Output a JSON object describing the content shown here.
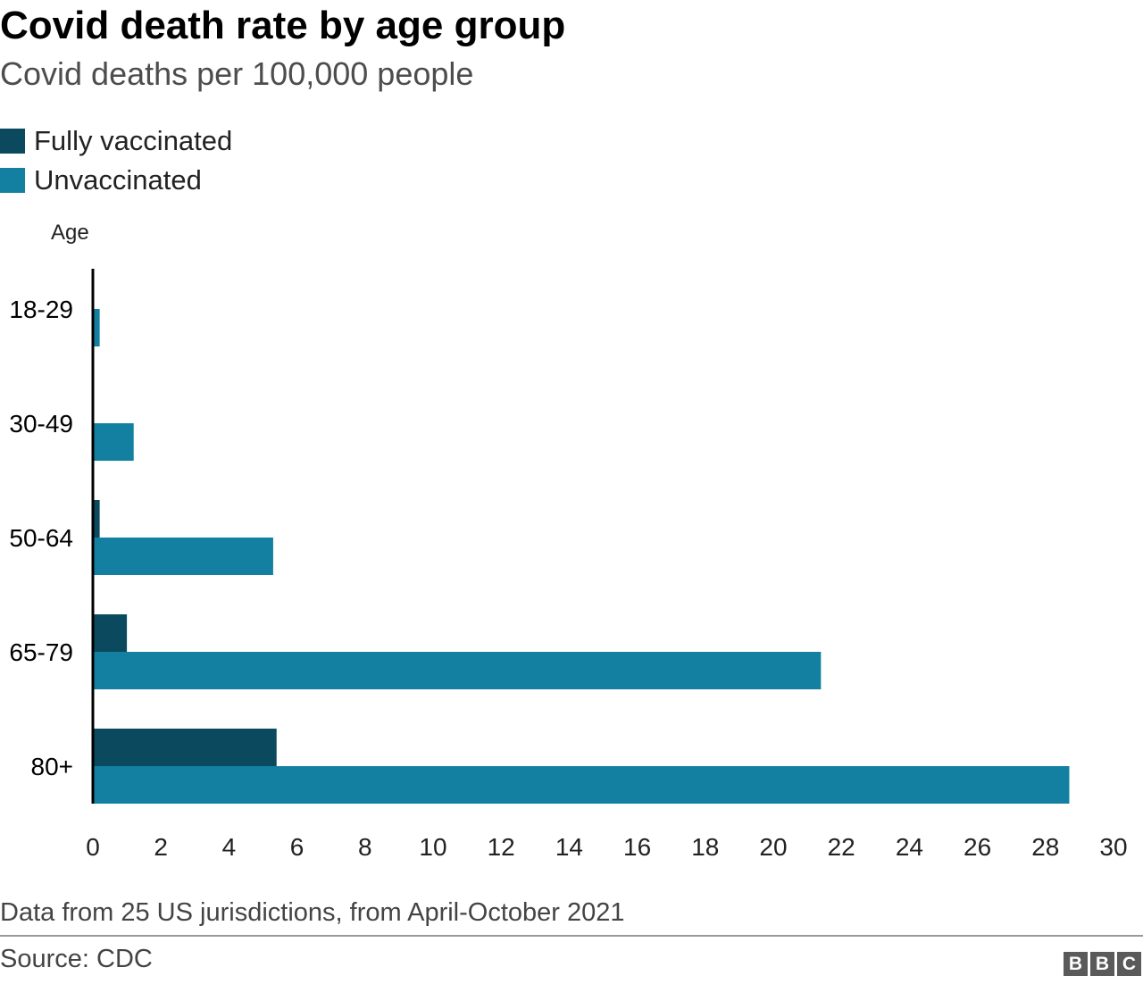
{
  "title": "Covid death rate by age group",
  "subtitle": "Covid deaths per 100,000 people",
  "note": "Data from 25 US jurisdictions, from April-October 2021",
  "source": "Source: CDC",
  "logo": [
    "B",
    "B",
    "C"
  ],
  "colors": {
    "fully_vaccinated": "#0b4a5e",
    "unvaccinated": "#1380a1",
    "axis": "#000000",
    "text": "#222222"
  },
  "chart_data": {
    "type": "bar",
    "orientation": "horizontal",
    "title": "Covid death rate by age group",
    "subtitle": "Covid deaths per 100,000 people",
    "ylabel": "Age",
    "xlabel": "",
    "categories": [
      "18-29",
      "30-49",
      "50-64",
      "65-79",
      "80+"
    ],
    "series": [
      {
        "name": "Fully vaccinated",
        "color": "#0b4a5e",
        "values": [
          0.0,
          0.0,
          0.2,
          1.0,
          5.4
        ]
      },
      {
        "name": "Unvaccinated",
        "color": "#1380a1",
        "values": [
          0.2,
          1.2,
          5.3,
          21.4,
          28.7
        ]
      }
    ],
    "xlim": [
      0,
      30
    ],
    "xticks": [
      0,
      2,
      4,
      6,
      8,
      10,
      12,
      14,
      16,
      18,
      20,
      22,
      24,
      26,
      28,
      30
    ],
    "grid": false,
    "legend": "top-left"
  }
}
